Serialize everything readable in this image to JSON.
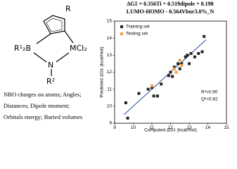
{
  "structure": {
    "substituent": "R",
    "boron": "R¹₂B",
    "metal": "MCl₂",
    "nitrogen": "N",
    "amine_substituent": "R²"
  },
  "descriptors": [
    "NBO charges on atoms; Angles;",
    "Distances; Dipole moment;",
    "Orbitals energy; Buried volumes"
  ],
  "chart_data": {
    "type": "scatter",
    "equation": [
      "ΔG‡ = 0.356Ti + 0.519dipole + 0.198",
      "LUMO-HOMO - 0.564Vbur3.0%_N"
    ],
    "x_label": "Computed ΔG‡ (kcal/mol)",
    "y_label": "Predicted ΔG‡ (kcal/mol)",
    "xlim": [
      9,
      15
    ],
    "ylim": [
      9,
      15
    ],
    "xticks": [
      9,
      10,
      11,
      12,
      13,
      14,
      15
    ],
    "yticks": [
      9,
      10,
      11,
      12,
      13,
      14,
      15
    ],
    "series": [
      {
        "name": "Training set",
        "color": "#222222",
        "x": [
          9.6,
          9.7,
          10.3,
          10.8,
          11.0,
          11.1,
          11.3,
          11.5,
          11.9,
          12.0,
          12.1,
          12.2,
          12.4,
          12.5,
          12.6,
          12.8,
          12.9,
          13.0,
          13.1,
          13.3,
          13.5,
          13.7,
          13.8
        ],
        "values": [
          10.2,
          9.3,
          10.75,
          11.0,
          11.1,
          10.6,
          10.6,
          11.3,
          11.8,
          12.0,
          11.75,
          12.3,
          12.5,
          12.2,
          12.5,
          12.9,
          13.0,
          12.5,
          13.1,
          12.9,
          13.1,
          13.2,
          14.1
        ]
      },
      {
        "name": "Testing set",
        "color": "#f0a040",
        "x": [
          11.0,
          12.2,
          12.3,
          12.5,
          12.6
        ],
        "values": [
          11.2,
          12.2,
          12.0,
          12.7,
          12.4
        ]
      }
    ],
    "fit": {
      "x": [
        9.5,
        13.9
      ],
      "values": [
        9.5,
        13.9
      ],
      "color": "#2a4a9a"
    },
    "annotations": [
      "R²=0.90",
      "Q²=0.82"
    ],
    "legend": "upper left"
  }
}
